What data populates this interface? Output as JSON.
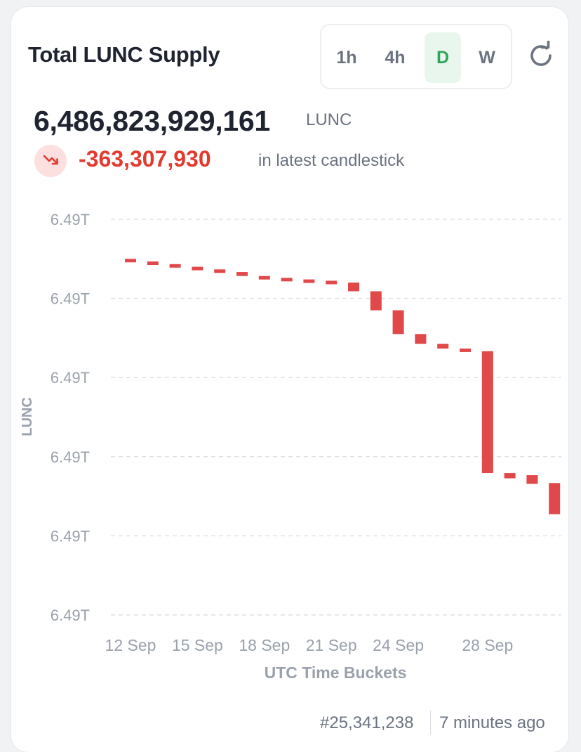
{
  "header": {
    "title": "Total LUNC Supply",
    "timeframes": [
      "1h",
      "4h",
      "D",
      "W"
    ],
    "active_timeframe": "D"
  },
  "summary": {
    "supply": "6,486,823,929,161",
    "unit": "LUNC",
    "change": "-363,307,930",
    "change_note": "in latest candlestick",
    "change_icon": "trending-down-icon"
  },
  "footer": {
    "block": "#25,341,238",
    "updated": "7 minutes ago"
  },
  "colors": {
    "down": "#e0484a",
    "active_green": "#2fa55a",
    "axis_text": "#9aa1ab"
  },
  "chart_data": {
    "type": "candlestick",
    "xlabel": "UTC Time Buckets",
    "ylabel": "LUNC",
    "ytick_labels": [
      "6.49T",
      "6.49T",
      "6.49T",
      "6.49T",
      "6.49T",
      "6.49T"
    ],
    "xtick_labels": [
      "12 Sep",
      "15 Sep",
      "18 Sep",
      "21 Sep",
      "24 Sep",
      "28 Sep"
    ],
    "grid": "horizontal-dashed",
    "candles": [
      {
        "date": "12 Sep",
        "open": 0.85,
        "close": 0.84
      },
      {
        "date": "13 Sep",
        "open": 0.84,
        "close": 0.83
      },
      {
        "date": "14 Sep",
        "open": 0.83,
        "close": 0.82
      },
      {
        "date": "15 Sep",
        "open": 0.82,
        "close": 0.81
      },
      {
        "date": "16 Sep",
        "open": 0.81,
        "close": 0.8
      },
      {
        "date": "17 Sep",
        "open": 0.8,
        "close": 0.785
      },
      {
        "date": "18 Sep",
        "open": 0.785,
        "close": 0.778
      },
      {
        "date": "19 Sep",
        "open": 0.778,
        "close": 0.772
      },
      {
        "date": "20 Sep",
        "open": 0.772,
        "close": 0.767
      },
      {
        "date": "21 Sep",
        "open": 0.767,
        "close": 0.76
      },
      {
        "date": "22 Sep",
        "open": 0.76,
        "close": 0.727
      },
      {
        "date": "23 Sep",
        "open": 0.727,
        "close": 0.655
      },
      {
        "date": "24 Sep",
        "open": 0.655,
        "close": 0.565
      },
      {
        "date": "25 Sep",
        "open": 0.565,
        "close": 0.528
      },
      {
        "date": "26 Sep",
        "open": 0.528,
        "close": 0.51
      },
      {
        "date": "27 Sep",
        "open": 0.51,
        "close": 0.5
      },
      {
        "date": "28 Sep",
        "open": 0.5,
        "close": 0.038
      },
      {
        "date": "29 Sep",
        "open": 0.038,
        "close": 0.018
      },
      {
        "date": "30 Sep",
        "open": 0.03,
        "close": -0.003
      },
      {
        "date": "1 Oct",
        "open": 0.0,
        "close": -0.118
      }
    ],
    "ylim": [
      -0.5,
      1.0
    ],
    "value_note": "values relative to the 6.49T gridline range"
  }
}
